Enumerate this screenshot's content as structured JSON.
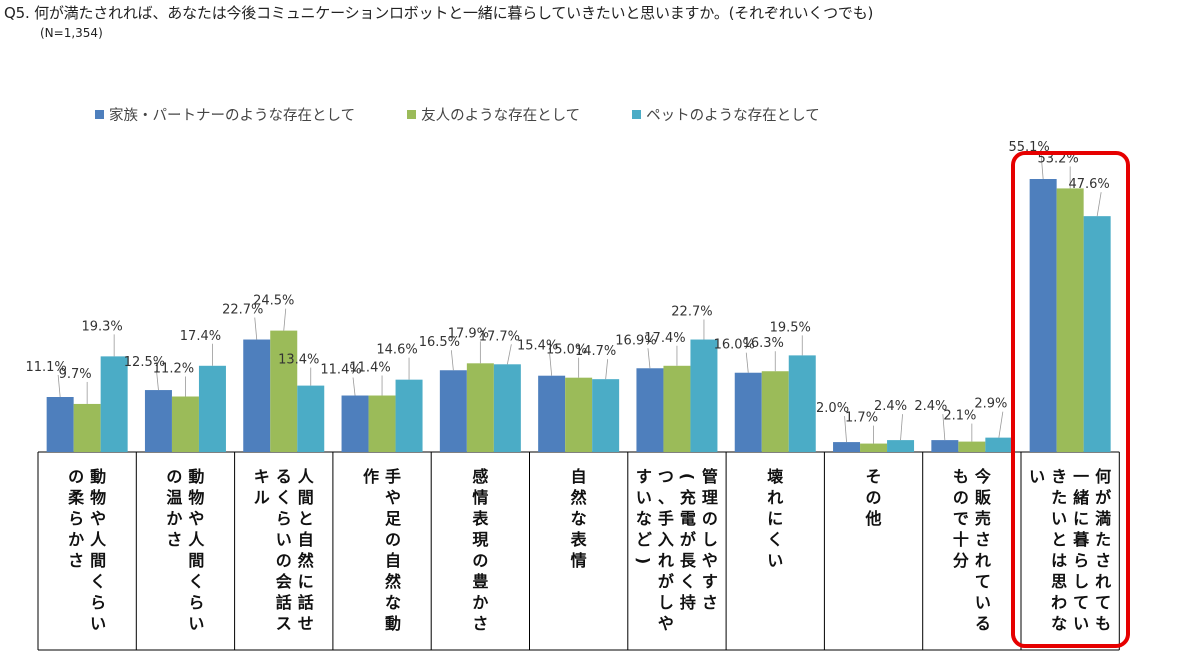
{
  "header": {
    "question": "Q5. 何が満たされれば、あなたは今後コミュニケーションロボットと一緒に暮らしていきたいと思いますか。(それぞれいくつでも)",
    "sample": "(N=1,354)"
  },
  "colors": {
    "family": "#4e7fbd",
    "friend": "#9bbb59",
    "pet": "#4bacc6",
    "highlight": "#e60000"
  },
  "chart_data": {
    "type": "bar",
    "series": [
      {
        "name": "家族・パートナーのような存在として",
        "values": [
          11.1,
          12.5,
          22.7,
          11.4,
          16.5,
          15.4,
          16.9,
          16.0,
          2.0,
          2.4,
          55.1
        ]
      },
      {
        "name": "友人のような存在として",
        "values": [
          9.7,
          11.2,
          24.5,
          11.4,
          17.9,
          15.0,
          17.4,
          16.3,
          1.7,
          2.1,
          53.2
        ]
      },
      {
        "name": "ペットのような存在として",
        "values": [
          19.3,
          17.4,
          13.4,
          14.6,
          17.7,
          14.7,
          22.7,
          19.5,
          2.4,
          2.9,
          47.6
        ]
      }
    ],
    "categories": [
      [
        "動物や人間くらい",
        "の柔らかさ"
      ],
      [
        "動物や人間くらい",
        "の温かさ"
      ],
      [
        "人間と自然に話せ",
        "るくらいの会話ス",
        "キル"
      ],
      [
        "手や足の自然な動",
        "作"
      ],
      [
        "感情表現の豊かさ"
      ],
      [
        "自然な表情"
      ],
      [
        "管理のしやすさ",
        "(充電が長く持",
        "つ、手入れがしや",
        "すいなど)"
      ],
      [
        "壊れにくい"
      ],
      [
        "その他"
      ],
      [
        "今販売されている",
        "もので十分"
      ],
      [
        "何が満たされても",
        "一緒に暮らしてい",
        "きたいとは思わな",
        "い"
      ]
    ],
    "value_labels": [
      [
        "11.1%",
        "9.7%",
        "19.3%"
      ],
      [
        "12.5%",
        "11.2%",
        "17.4%"
      ],
      [
        "22.7%",
        "24.5%",
        "13.4%"
      ],
      [
        "11.4%",
        "11.4%",
        "14.6%"
      ],
      [
        "16.5%",
        "17.9%",
        "17.7%"
      ],
      [
        "15.4%",
        "15.0%",
        "14.7%"
      ],
      [
        "16.9%",
        "17.4%",
        "22.7%"
      ],
      [
        "16.0%",
        "16.3%",
        "19.5%"
      ],
      [
        "2.0%",
        "1.7%",
        "2.4%"
      ],
      [
        "2.4%",
        "2.1%",
        "2.9%"
      ],
      [
        "55.1%",
        "53.2%",
        "47.6%"
      ]
    ],
    "highlighted_category_index": 10,
    "ylim": [
      0,
      60
    ]
  }
}
